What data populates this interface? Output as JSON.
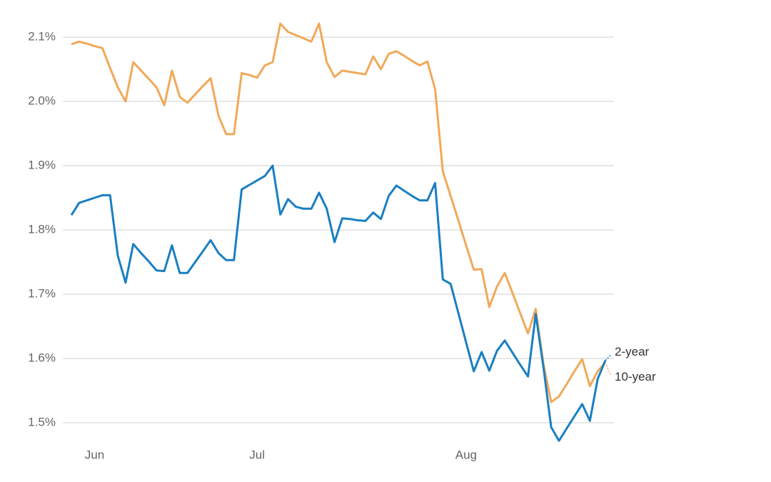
{
  "chart_data": {
    "type": "line",
    "categories": [
      null,
      null,
      null,
      "Jun",
      null,
      null,
      null,
      null,
      null,
      null,
      null,
      null,
      null,
      null,
      null,
      null,
      null,
      null,
      null,
      null,
      null,
      null,
      null,
      null,
      "Jul",
      null,
      null,
      null,
      null,
      null,
      null,
      null,
      null,
      null,
      null,
      null,
      null,
      null,
      null,
      null,
      null,
      null,
      null,
      null,
      null,
      null,
      null,
      null,
      null,
      null,
      null,
      "Aug",
      null,
      null,
      null,
      null,
      null,
      null,
      null,
      null,
      null,
      null,
      null,
      null,
      null,
      null,
      null,
      null,
      null,
      null
    ],
    "series": [
      {
        "name": "10-year",
        "color": "#f0a95a",
        "values": [
          2.089,
          2.093,
          2.09,
          2.086,
          2.083,
          2.052,
          2.022,
          2.0,
          2.061,
          2.048,
          2.035,
          2.022,
          1.994,
          2.048,
          2.007,
          1.998,
          2.011,
          2.024,
          2.036,
          1.978,
          1.949,
          1.949,
          2.044,
          2.041,
          2.037,
          2.056,
          2.061,
          2.121,
          2.108,
          2.103,
          2.098,
          2.093,
          2.121,
          2.061,
          2.038,
          2.048,
          2.046,
          2.044,
          2.042,
          2.07,
          2.05,
          2.074,
          2.078,
          2.071,
          2.063,
          2.056,
          2.062,
          2.019,
          1.891,
          1.853,
          1.815,
          1.776,
          1.738,
          1.739,
          1.68,
          1.712,
          1.733,
          1.702,
          1.67,
          1.639,
          1.677,
          1.591,
          1.532,
          1.541,
          1.56,
          1.58,
          1.599,
          1.557,
          1.58,
          1.594
        ]
      },
      {
        "name": "2-year",
        "color": "#1a7fc1",
        "values": [
          1.823,
          1.842,
          1.846,
          1.85,
          1.854,
          1.854,
          1.76,
          1.718,
          1.778,
          1.764,
          1.751,
          1.737,
          1.736,
          1.776,
          1.733,
          1.733,
          1.75,
          1.767,
          1.784,
          1.764,
          1.753,
          1.753,
          1.863,
          1.87,
          1.877,
          1.884,
          1.9,
          1.824,
          1.848,
          1.836,
          1.833,
          1.833,
          1.858,
          1.833,
          1.781,
          1.818,
          1.817,
          1.815,
          1.814,
          1.827,
          1.817,
          1.853,
          1.869,
          1.861,
          1.853,
          1.846,
          1.846,
          1.873,
          1.723,
          1.716,
          1.671,
          1.625,
          1.58,
          1.61,
          1.581,
          1.612,
          1.628,
          1.609,
          1.59,
          1.572,
          1.669,
          1.586,
          1.493,
          1.472,
          1.491,
          1.51,
          1.529,
          1.503,
          1.568,
          1.597
        ]
      }
    ],
    "ylim": [
      1.46,
      2.13
    ],
    "yticks": [
      {
        "value": 1.5,
        "label": "1.5%"
      },
      {
        "value": 1.6,
        "label": "1.6%"
      },
      {
        "value": 1.7,
        "label": "1.7%"
      },
      {
        "value": 1.8,
        "label": "1.8%"
      },
      {
        "value": 1.9,
        "label": "1.9%"
      },
      {
        "value": 2.0,
        "label": "2.0%"
      },
      {
        "value": 2.1,
        "label": "2.1%"
      }
    ],
    "grid": true
  }
}
